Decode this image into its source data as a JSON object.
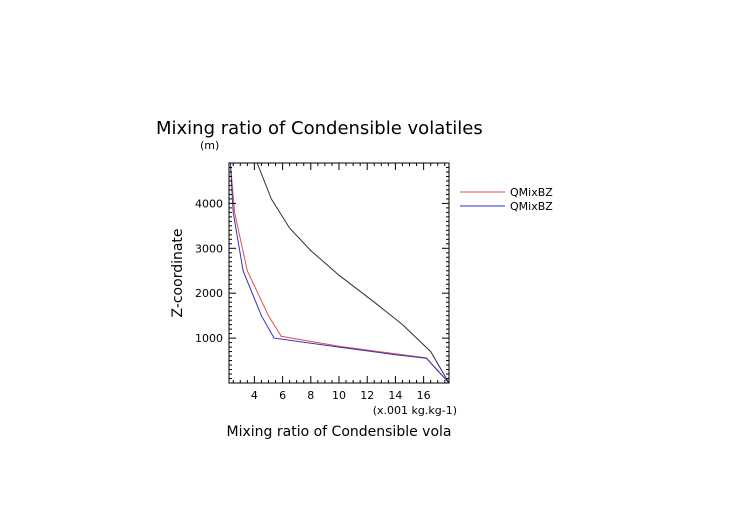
{
  "chart_data": {
    "type": "line",
    "title": "Mixing ratio of Condensible volatiles",
    "ylabel": "Z-coordinate",
    "y_units": "(m)",
    "xlabel": "Mixing ratio of Condensible vola",
    "x_units": "(x.001 kg.kg-1)",
    "xlim": [
      2.2,
      17.8
    ],
    "ylim": [
      0,
      4900
    ],
    "x_ticks": [
      4,
      6,
      8,
      10,
      12,
      14,
      16
    ],
    "x_tick_labels": [
      "4",
      "6",
      "8",
      "10",
      "12",
      "14",
      "16"
    ],
    "y_ticks": [
      1000,
      2000,
      3000,
      4000
    ],
    "y_tick_labels": [
      "1000",
      "2000",
      "3000",
      "4000"
    ],
    "legend": {
      "placement": "right",
      "entries": [
        {
          "label": "QMixBZ",
          "color": "#e05050"
        },
        {
          "label": "QMixBZ",
          "color": "#3030c0"
        }
      ]
    },
    "series": [
      {
        "name": "QMixBZ",
        "color": "#e05050",
        "x": [
          17.8,
          16.2,
          14.0,
          10.0,
          5.9,
          5.0,
          3.5,
          2.6,
          2.3
        ],
        "y": [
          0,
          560,
          650,
          820,
          1040,
          1500,
          2500,
          3800,
          4900
        ]
      },
      {
        "name": "QMixBZ",
        "color": "#3030c0",
        "x": [
          17.8,
          16.2,
          14.0,
          10.0,
          5.4,
          4.5,
          3.2,
          2.5,
          2.3
        ],
        "y": [
          0,
          550,
          630,
          800,
          1000,
          1500,
          2500,
          3800,
          4900
        ]
      },
      {
        "name": "unlabeled",
        "color": "#303030",
        "x": [
          17.8,
          16.5,
          14.5,
          12.5,
          10.0,
          8.0,
          6.5,
          5.2,
          4.2
        ],
        "y": [
          0,
          700,
          1300,
          1800,
          2400,
          2950,
          3450,
          4100,
          4900
        ]
      }
    ]
  }
}
